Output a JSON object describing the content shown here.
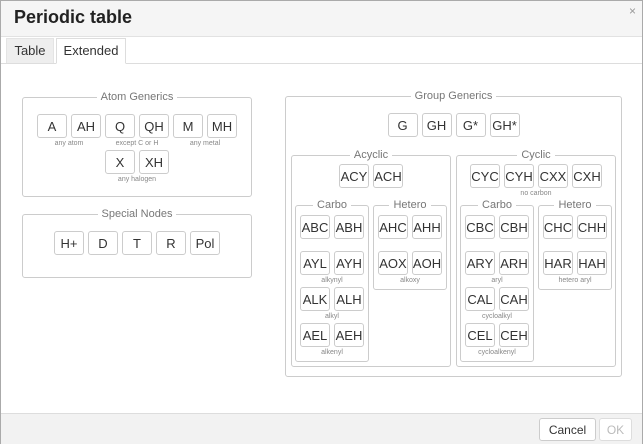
{
  "dialog": {
    "title": "Periodic table",
    "close_icon": "×"
  },
  "tabs": [
    {
      "label": "Table"
    },
    {
      "label": "Extended",
      "active": true
    }
  ],
  "boxes": {
    "atom": {
      "legend": "Atom Generics",
      "rows": [
        [
          {
            "buttons": [
              "A",
              "AH"
            ],
            "caption": "any atom"
          },
          {
            "buttons": [
              "Q",
              "QH"
            ],
            "caption": "except C or H"
          },
          {
            "buttons": [
              "M",
              "MH"
            ],
            "caption": "any metal"
          }
        ],
        [
          {
            "buttons": [
              "X",
              "XH"
            ],
            "caption": "any halogen"
          }
        ]
      ]
    },
    "special": {
      "legend": "Special Nodes",
      "rows": [
        [
          {
            "buttons": [
              "H+",
              "D",
              "T",
              "R",
              "Pol"
            ],
            "caption": ""
          }
        ]
      ]
    },
    "group": {
      "legend": "Group Generics",
      "rows": [
        [
          {
            "buttons": [
              "G",
              "GH",
              "G*",
              "GH*"
            ],
            "caption": ""
          }
        ]
      ]
    },
    "acyclic": {
      "legend": "Acyclic",
      "rows": [
        [
          {
            "buttons": [
              "ACY",
              "ACH"
            ],
            "caption": ""
          }
        ]
      ]
    },
    "acarbo": {
      "legend": "Carbo",
      "rows": [
        [
          {
            "buttons": [
              "ABC",
              "ABH"
            ],
            "caption": ""
          }
        ],
        [
          {
            "buttons": [
              "AYL",
              "AYH"
            ],
            "caption": "alkynyl"
          }
        ],
        [
          {
            "buttons": [
              "ALK",
              "ALH"
            ],
            "caption": "alkyl"
          }
        ],
        [
          {
            "buttons": [
              "AEL",
              "AEH"
            ],
            "caption": "alkenyl"
          }
        ]
      ]
    },
    "ahetero": {
      "legend": "Hetero",
      "rows": [
        [
          {
            "buttons": [
              "AHC",
              "AHH"
            ],
            "caption": ""
          }
        ],
        [
          {
            "buttons": [
              "AOX",
              "AOH"
            ],
            "caption": "alkoxy"
          }
        ]
      ]
    },
    "cyclic": {
      "legend": "Cyclic",
      "rows": [
        [
          {
            "buttons": [
              "CYC",
              "CYH",
              "CXX",
              "CXH"
            ],
            "caption": "no carbon"
          }
        ]
      ]
    },
    "ccarbo": {
      "legend": "Carbo",
      "rows": [
        [
          {
            "buttons": [
              "CBC",
              "CBH"
            ],
            "caption": ""
          }
        ],
        [
          {
            "buttons": [
              "ARY",
              "ARH"
            ],
            "caption": "aryl"
          }
        ],
        [
          {
            "buttons": [
              "CAL",
              "CAH"
            ],
            "caption": "cycloalkyl"
          }
        ],
        [
          {
            "buttons": [
              "CEL",
              "CEH"
            ],
            "caption": "cycloalkenyl"
          }
        ]
      ]
    },
    "chetero": {
      "legend": "Hetero",
      "rows": [
        [
          {
            "buttons": [
              "CHC",
              "CHH"
            ],
            "caption": ""
          }
        ],
        [
          {
            "buttons": [
              "HAR",
              "HAH"
            ],
            "caption": "hetero aryl"
          }
        ]
      ]
    }
  },
  "footer": {
    "cancel_label": "Cancel",
    "ok_label": "OK",
    "ok_disabled": true
  }
}
